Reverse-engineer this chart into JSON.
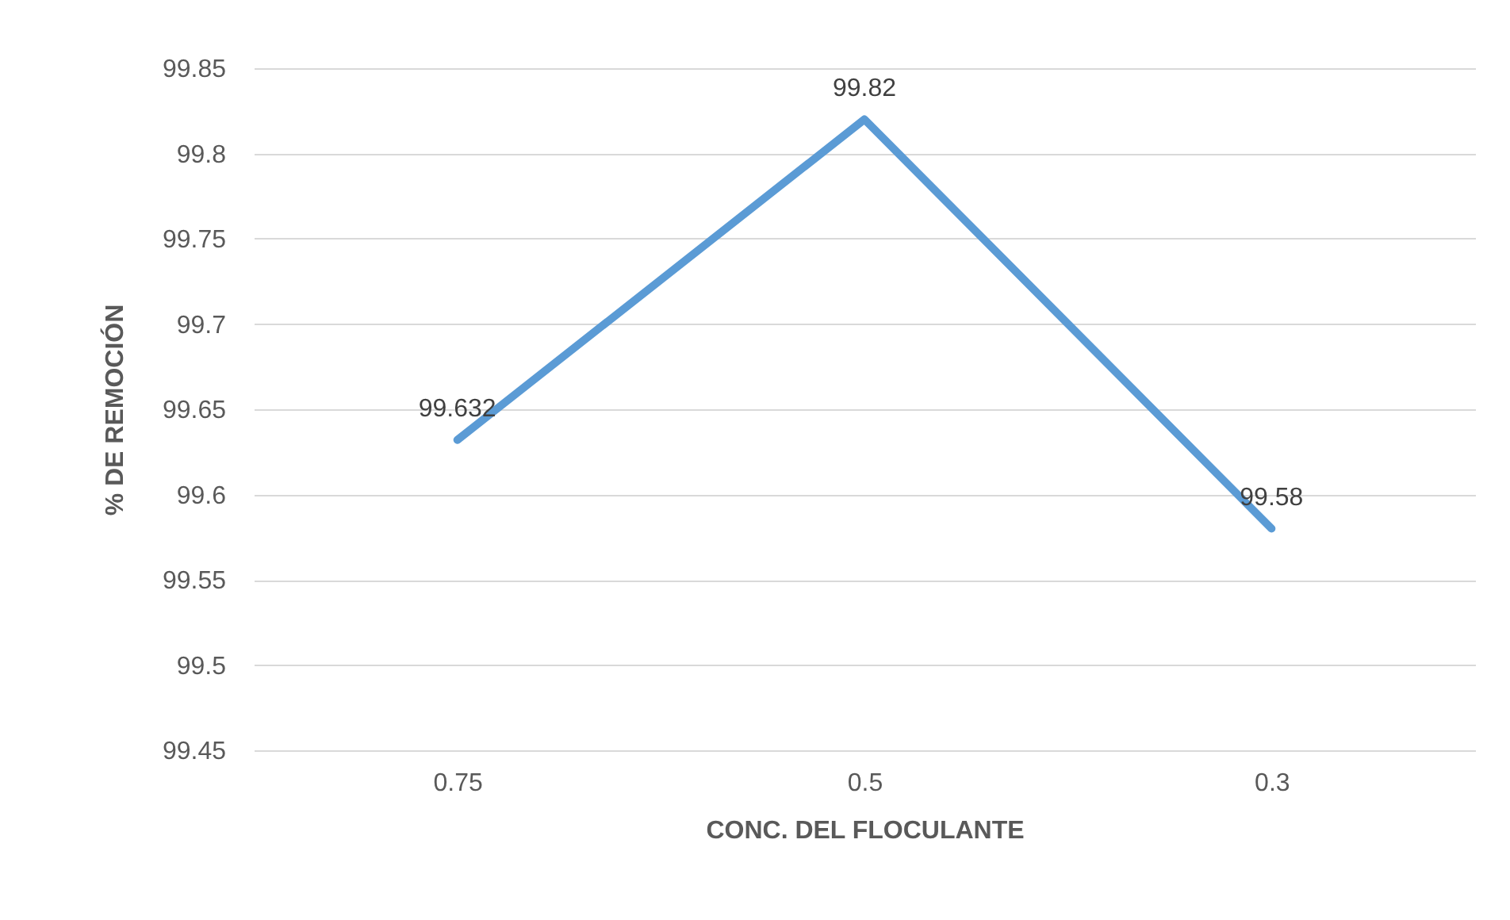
{
  "chart_data": {
    "type": "line",
    "xlabel": "CONC. DEL FLOCULANTE",
    "ylabel": "% DE REMOCIÓN",
    "categories": [
      "0.75",
      "0.5",
      "0.3"
    ],
    "series": [
      {
        "color": "#5b9bd5",
        "values": [
          99.632,
          99.82,
          99.58
        ]
      }
    ],
    "ylim": [
      99.45,
      99.85
    ],
    "yticks": [
      99.45,
      99.5,
      99.55,
      99.6,
      99.65,
      99.7,
      99.75,
      99.8,
      99.85
    ],
    "grid": "y",
    "data_labels": true
  }
}
